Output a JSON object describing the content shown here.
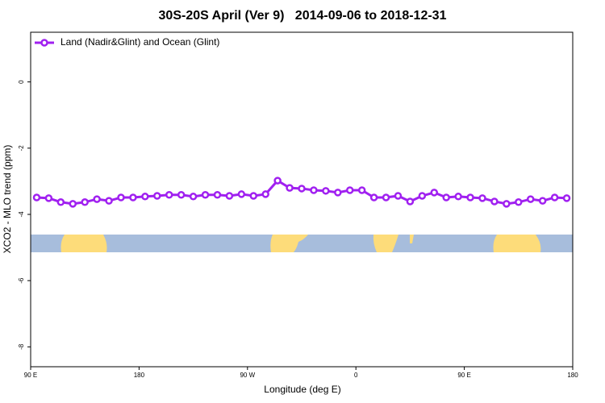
{
  "chart_data": {
    "type": "line",
    "title": "30S-20S April (Ver 9)   2014-09-06 to 2018-12-31",
    "x_label": "Longitude (deg E)",
    "y_label": "XCO2 - MLO trend (ppm)",
    "xlim": [
      90,
      540
    ],
    "ylim": [
      -8.6,
      1.5
    ],
    "xticks": [
      {
        "value": 90,
        "label": "90 E"
      },
      180,
      {
        "value": 270,
        "label": "90 W"
      },
      {
        "value": 360,
        "label": "0"
      },
      {
        "value": 450,
        "label": "90 E"
      },
      {
        "value": 540,
        "label": "180"
      }
    ],
    "yticks": [
      0,
      -2,
      -4,
      -6,
      -8
    ],
    "legend": "top-left",
    "x": [
      95,
      105,
      115,
      125,
      135,
      145,
      155,
      165,
      175,
      185,
      195,
      205,
      215,
      225,
      235,
      245,
      255,
      265,
      275,
      285,
      295,
      305,
      315,
      325,
      335,
      345,
      355,
      365,
      375,
      385,
      395,
      405,
      415,
      425,
      435,
      445,
      455,
      465,
      475,
      485,
      495,
      505,
      515,
      525,
      535
    ],
    "series": [
      {
        "name": "Land (Nadir&Glint) and Ocean (Glint)",
        "color": "#a020f0",
        "values": [
          -3.49,
          -3.51,
          -3.63,
          -3.68,
          -3.63,
          -3.54,
          -3.59,
          -3.49,
          -3.49,
          -3.46,
          -3.44,
          -3.41,
          -3.41,
          -3.46,
          -3.41,
          -3.41,
          -3.44,
          -3.39,
          -3.44,
          -3.39,
          -2.98,
          -3.2,
          -3.22,
          -3.27,
          -3.29,
          -3.34,
          -3.27,
          -3.27,
          -3.49,
          -3.49,
          -3.44,
          -3.61,
          -3.44,
          -3.34,
          -3.49,
          -3.46,
          -3.49,
          -3.51,
          -3.61,
          -3.68,
          -3.63,
          -3.54,
          -3.59,
          -3.49,
          -3.51
        ]
      }
    ]
  }
}
